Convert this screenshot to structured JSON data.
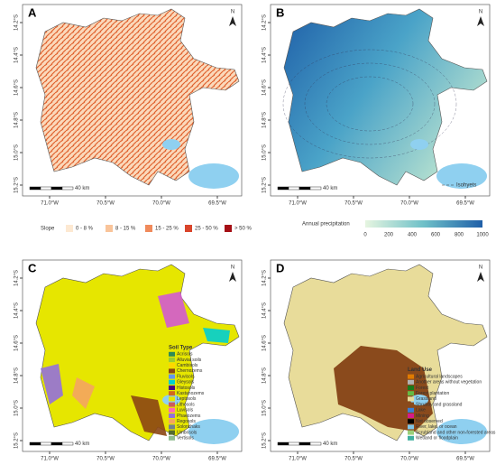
{
  "panels": [
    {
      "label": "A",
      "style": "slope",
      "north": "N",
      "scale": "40 km",
      "xticks": [
        "71.0°W",
        "70.5°W",
        "70.0°W",
        "69.5°W"
      ],
      "yticks": [
        "14.2°S",
        "14.4°S",
        "14.6°S",
        "14.8°S",
        "15.0°S",
        "15.2°S"
      ],
      "legend": {
        "title": "Slope",
        "items": [
          {
            "label": "0 - 8 %",
            "color": "#fde9d2"
          },
          {
            "label": "8 - 15 %",
            "color": "#f9c49a"
          },
          {
            "label": "15 - 25 %",
            "color": "#f08a5b"
          },
          {
            "label": "25 - 50 %",
            "color": "#d9452b"
          },
          {
            "label": "> 50 %",
            "color": "#a50f15"
          }
        ]
      }
    },
    {
      "label": "B",
      "style": "precip",
      "north": "N",
      "scale": "40 km",
      "xticks": [
        "71.0°W",
        "70.5°W",
        "70.0°W",
        "69.5°W"
      ],
      "yticks": [
        "14.2°S",
        "14.4°S",
        "14.6°S",
        "14.8°S",
        "15.0°S",
        "15.2°S"
      ],
      "legend": {
        "title": "Annual precipitation",
        "ticks": [
          "0",
          "200",
          "400",
          "600",
          "800",
          "1000"
        ],
        "isohyets": "Isohyets"
      }
    },
    {
      "label": "C",
      "style": "soil",
      "north": "N",
      "scale": "40 km",
      "xticks": [
        "71.0°W",
        "70.5°W",
        "70.0°W",
        "69.5°W"
      ],
      "yticks": [
        "14.2°S",
        "14.4°S",
        "14.6°S",
        "14.8°S",
        "15.0°S",
        "15.2°S"
      ],
      "legend": {
        "title": "Soil Type",
        "items": [
          {
            "label": "Acrisols",
            "color": "#2e8b57"
          },
          {
            "label": "Alluvial soils",
            "color": "#9acd32"
          },
          {
            "label": "Cambisols",
            "color": "#ffd700"
          },
          {
            "label": "Chernozems",
            "color": "#8b4513"
          },
          {
            "label": "Fluvisols",
            "color": "#6495ed"
          },
          {
            "label": "Gleysols",
            "color": "#00ced1"
          },
          {
            "label": "Histosols",
            "color": "#4b0082"
          },
          {
            "label": "Kastanozems",
            "color": "#d2691e"
          },
          {
            "label": "Leptosols",
            "color": "#e6e600"
          },
          {
            "label": "Lithosols",
            "color": "#cd5c5c"
          },
          {
            "label": "Luvisols",
            "color": "#ff69b4"
          },
          {
            "label": "Phaeozems",
            "color": "#9370db"
          },
          {
            "label": "Regosols",
            "color": "#f4a460"
          },
          {
            "label": "Solonchaks",
            "color": "#708090"
          },
          {
            "label": "Umbrisols",
            "color": "#556b2f"
          },
          {
            "label": "Vertisols",
            "color": "#8fbc8f"
          }
        ]
      }
    },
    {
      "label": "D",
      "style": "land",
      "north": "N",
      "scale": "40 km",
      "xticks": [
        "71.0°W",
        "70.5°W",
        "70.0°W",
        "69.5°W"
      ],
      "yticks": [
        "14.2°S",
        "14.4°S",
        "14.6°S",
        "14.8°S",
        "15.0°S",
        "15.2°S"
      ],
      "legend": {
        "title": "Land Use",
        "items": [
          {
            "label": "Agricultural landscapes",
            "color": "#e07b00"
          },
          {
            "label": "Another areas without vegetation",
            "color": "#b3b3b3"
          },
          {
            "label": "Forest",
            "color": "#1a7a1a"
          },
          {
            "label": "Forest plantation",
            "color": "#66bb44"
          },
          {
            "label": "Grassland",
            "color": "#e8dc9a"
          },
          {
            "label": "Shrubby and grassland",
            "color": "#8a4a1c"
          },
          {
            "label": "Lake",
            "color": "#3b7fd4"
          },
          {
            "label": "Mining",
            "color": "#d61a8a"
          },
          {
            "label": "Not observed",
            "color": "#000000"
          },
          {
            "label": "River, lake, or ocean",
            "color": "#7fc6e8"
          },
          {
            "label": "Scrubland and other non-forested areas",
            "color": "#9bd07a"
          },
          {
            "label": "Wetland or floodplain",
            "color": "#40b0a0"
          }
        ]
      }
    }
  ]
}
